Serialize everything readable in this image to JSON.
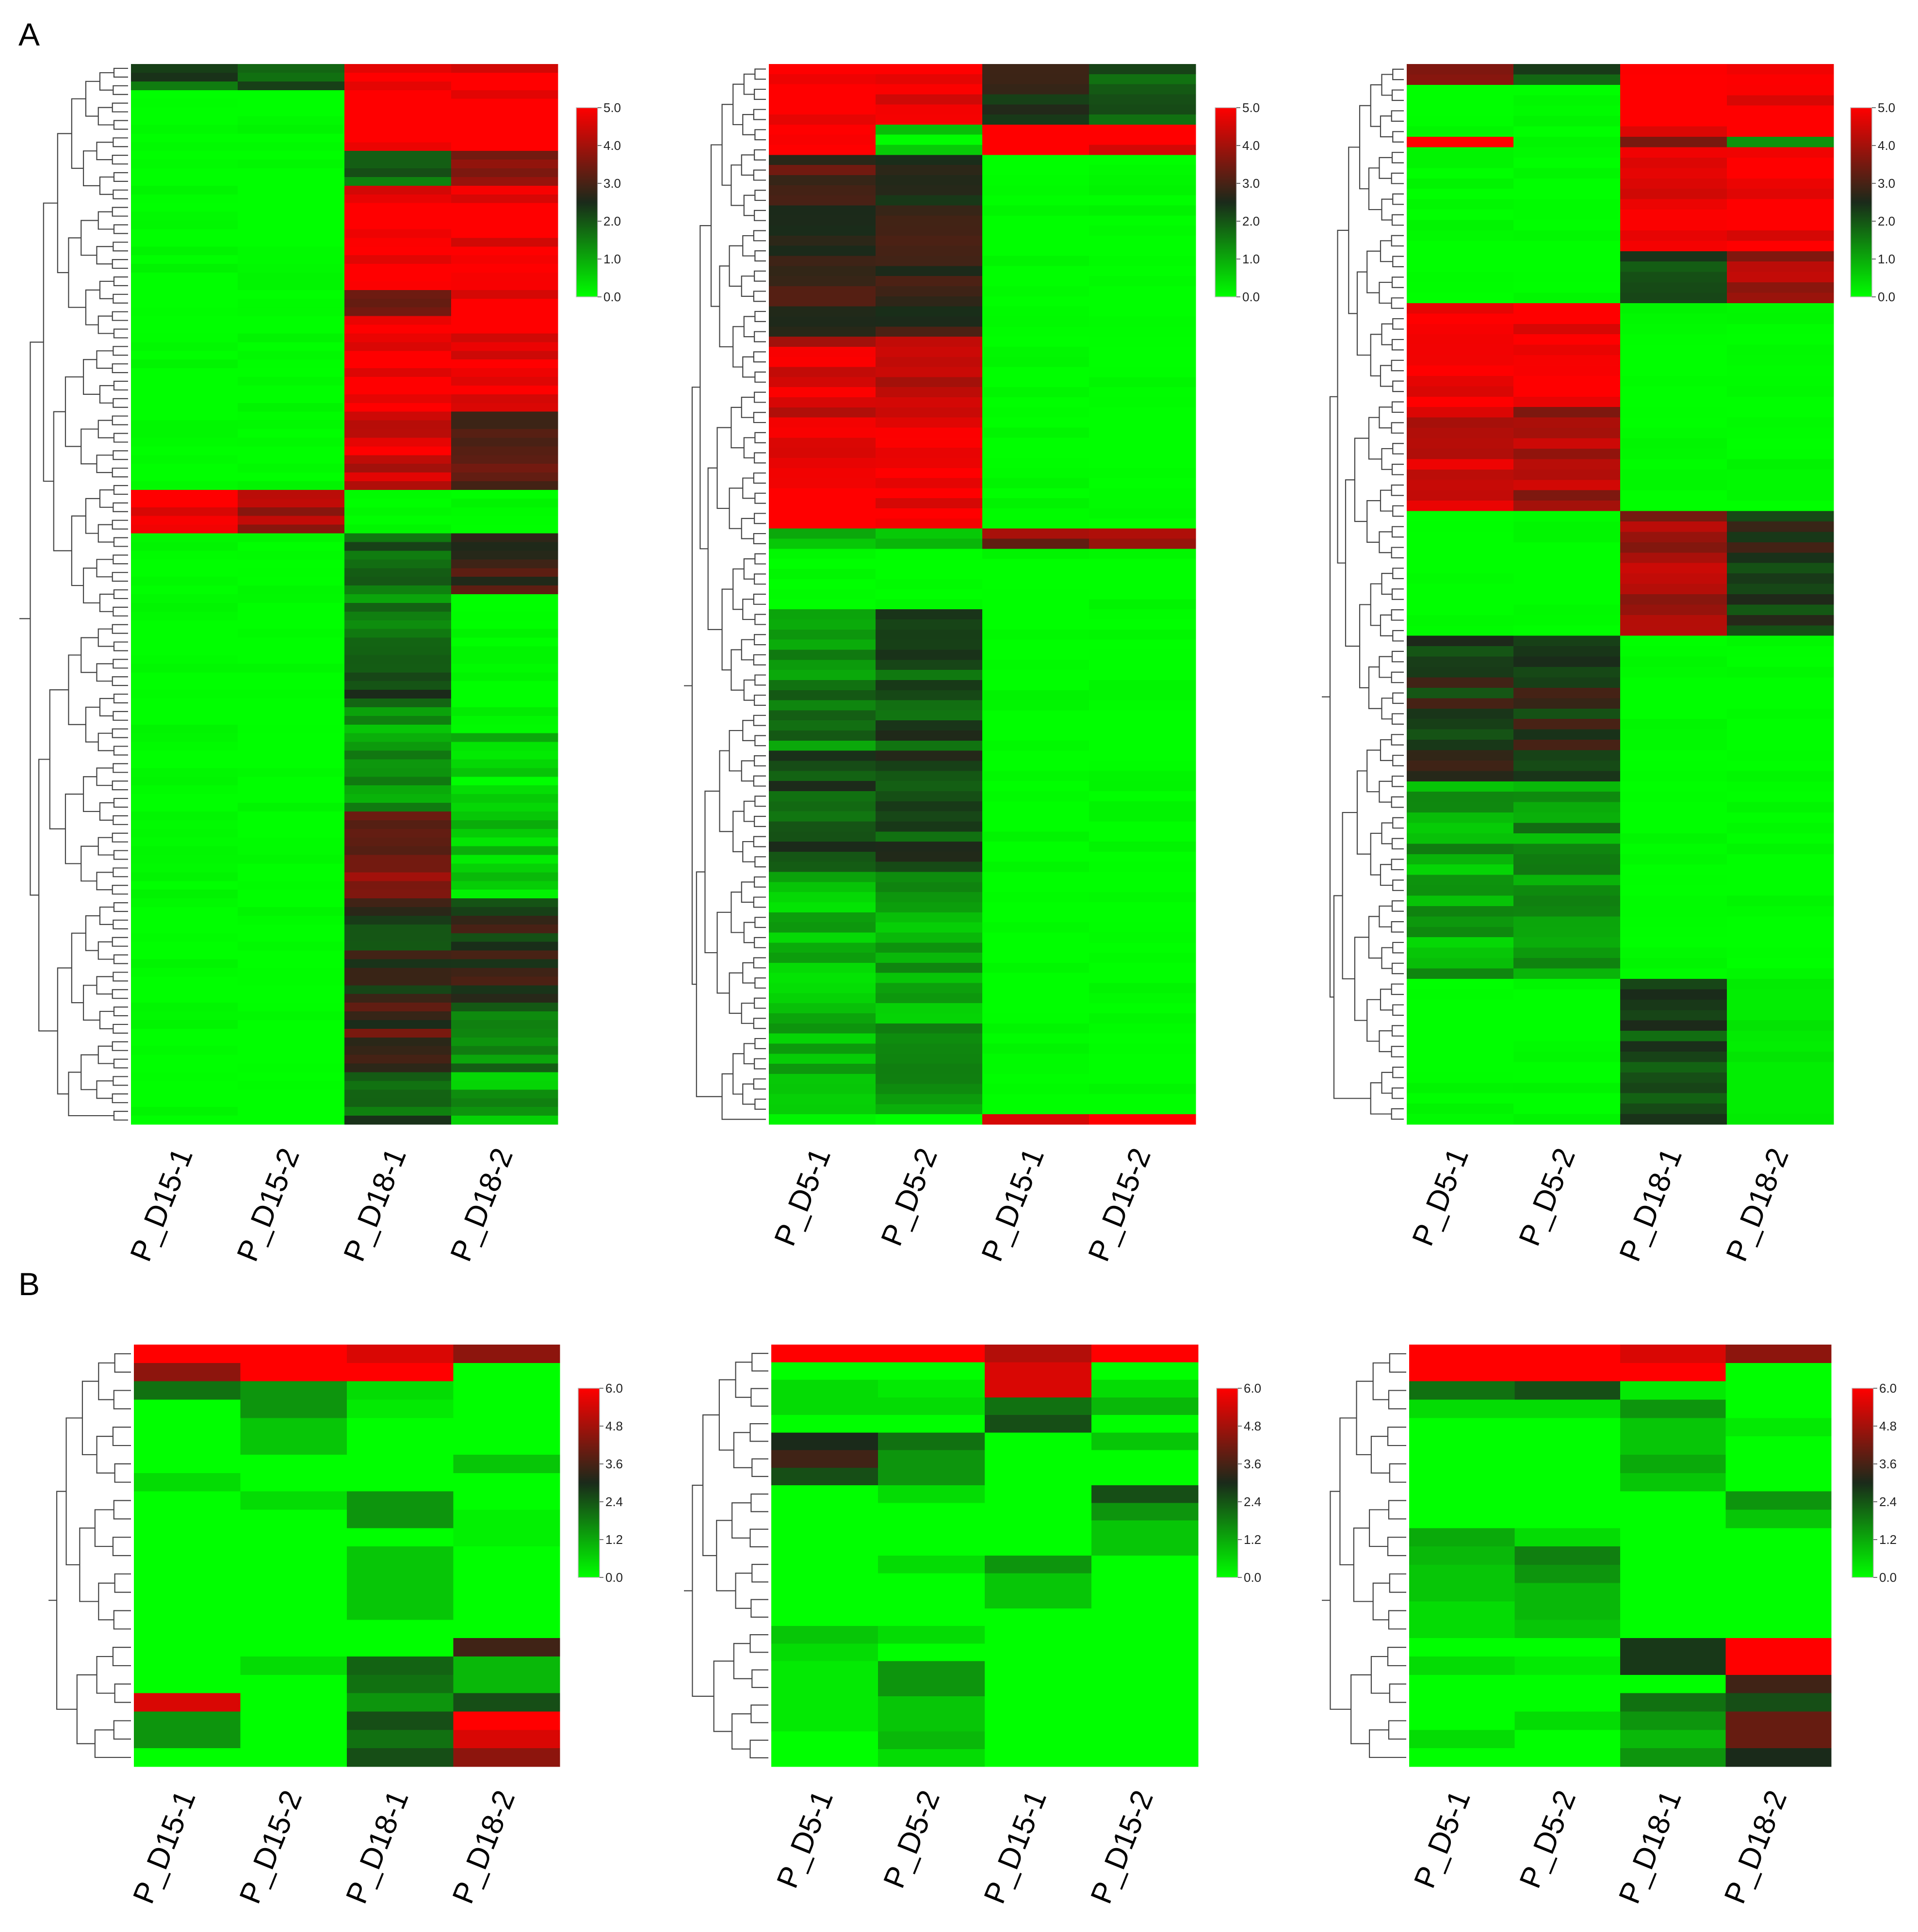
{
  "figure": {
    "panel_labels": [
      "A",
      "B"
    ]
  },
  "colors": {
    "low": "#00ff00",
    "mid": "#1a2a1a",
    "high": "#ff0000"
  },
  "chart_data": [
    {
      "type": "heatmap",
      "panel": "A",
      "columns": [
        "P_D15-1",
        "P_D15-2",
        "P_D18-1",
        "P_D18-2"
      ],
      "color_range": [
        0,
        5
      ],
      "legend_ticks": [
        "5.0",
        "4.0",
        "3.0",
        "2.0",
        "1.0",
        "0.0"
      ],
      "row_blocks": [
        {
          "rows": 3,
          "values": [
            2.0,
            1.8,
            5.0,
            5.0
          ]
        },
        {
          "rows": 7,
          "values": [
            0.0,
            0.0,
            5.0,
            5.0
          ]
        },
        {
          "rows": 4,
          "values": [
            0.0,
            0.0,
            2.0,
            3.5
          ]
        },
        {
          "rows": 12,
          "values": [
            0.0,
            0.0,
            5.0,
            5.0
          ]
        },
        {
          "rows": 3,
          "values": [
            0.0,
            0.0,
            3.0,
            5.0
          ]
        },
        {
          "rows": 11,
          "values": [
            0.0,
            0.0,
            5.0,
            5.0
          ]
        },
        {
          "rows": 9,
          "values": [
            0.0,
            0.0,
            4.5,
            3.0
          ]
        },
        {
          "rows": 5,
          "values": [
            5.0,
            4.0,
            0.0,
            0.0
          ]
        },
        {
          "rows": 7,
          "values": [
            0.0,
            0.0,
            2.0,
            3.0
          ]
        },
        {
          "rows": 6,
          "values": [
            0.0,
            0.0,
            1.5,
            0.0
          ]
        },
        {
          "rows": 7,
          "values": [
            0.0,
            0.0,
            2.0,
            0.0
          ]
        },
        {
          "rows": 12,
          "values": [
            0.0,
            0.0,
            1.2,
            0.5
          ]
        },
        {
          "rows": 10,
          "values": [
            0.0,
            0.0,
            3.5,
            0.5
          ]
        },
        {
          "rows": 12,
          "values": [
            0.0,
            0.0,
            2.5,
            2.5
          ]
        },
        {
          "rows": 8,
          "values": [
            0.0,
            0.0,
            3.0,
            1.5
          ]
        },
        {
          "rows": 6,
          "values": [
            0.0,
            0.0,
            2.0,
            1.0
          ]
        }
      ]
    },
    {
      "type": "heatmap",
      "panel": "A",
      "columns": [
        "P_D5-1",
        "P_D5-2",
        "P_D15-1",
        "P_D15-2"
      ],
      "color_range": [
        0,
        5
      ],
      "legend_ticks": [
        "5.0",
        "4.0",
        "3.0",
        "2.0",
        "1.0",
        "0.0"
      ],
      "row_blocks": [
        {
          "rows": 6,
          "values": [
            5.0,
            5.0,
            2.5,
            2.0
          ]
        },
        {
          "rows": 3,
          "values": [
            5.0,
            0.5,
            5.0,
            5.0
          ]
        },
        {
          "rows": 18,
          "values": [
            3.0,
            2.8,
            0.0,
            0.0
          ]
        },
        {
          "rows": 10,
          "values": [
            4.5,
            4.5,
            0.0,
            0.0
          ]
        },
        {
          "rows": 9,
          "values": [
            5.0,
            5.0,
            0.0,
            0.0
          ]
        },
        {
          "rows": 2,
          "values": [
            0.5,
            0.5,
            3.5,
            4.0
          ]
        },
        {
          "rows": 6,
          "values": [
            0.0,
            0.0,
            0.0,
            0.0
          ]
        },
        {
          "rows": 14,
          "values": [
            1.5,
            2.0,
            0.0,
            0.0
          ]
        },
        {
          "rows": 12,
          "values": [
            2.0,
            2.2,
            0.0,
            0.0
          ]
        },
        {
          "rows": 24,
          "values": [
            0.8,
            1.0,
            0.0,
            0.0
          ]
        },
        {
          "rows": 1,
          "values": [
            0.0,
            0.0,
            5.0,
            5.0
          ]
        }
      ]
    },
    {
      "type": "heatmap",
      "panel": "A",
      "columns": [
        "P_D5-1",
        "P_D5-2",
        "P_D18-1",
        "P_D18-2"
      ],
      "color_range": [
        0,
        5
      ],
      "legend_ticks": [
        "5.0",
        "4.0",
        "3.0",
        "2.0",
        "1.0",
        "0.0"
      ],
      "row_blocks": [
        {
          "rows": 2,
          "values": [
            3.5,
            2.0,
            5.0,
            5.0
          ]
        },
        {
          "rows": 5,
          "values": [
            0.0,
            0.0,
            5.0,
            5.0
          ]
        },
        {
          "rows": 1,
          "values": [
            5.0,
            0.0,
            3.0,
            1.0
          ]
        },
        {
          "rows": 10,
          "values": [
            0.0,
            0.0,
            5.0,
            5.0
          ]
        },
        {
          "rows": 5,
          "values": [
            0.0,
            0.0,
            2.0,
            4.0
          ]
        },
        {
          "rows": 10,
          "values": [
            5.0,
            5.0,
            0.0,
            0.0
          ]
        },
        {
          "rows": 10,
          "values": [
            4.5,
            4.0,
            0.0,
            0.0
          ]
        },
        {
          "rows": 12,
          "values": [
            0.0,
            0.0,
            4.0,
            2.5
          ]
        },
        {
          "rows": 14,
          "values": [
            2.5,
            2.5,
            0.0,
            0.0
          ]
        },
        {
          "rows": 19,
          "values": [
            1.0,
            1.2,
            0.0,
            0.0
          ]
        },
        {
          "rows": 14,
          "values": [
            0.0,
            0.0,
            2.0,
            0.2
          ]
        }
      ]
    },
    {
      "type": "heatmap",
      "panel": "B",
      "columns": [
        "P_D15-1",
        "P_D15-2",
        "P_D18-1",
        "P_D18-2"
      ],
      "color_range": [
        0,
        6
      ],
      "legend_ticks": [
        "6.0",
        "4.8",
        "3.6",
        "2.4",
        "1.2",
        "0.0"
      ],
      "rows": [
        [
          6.0,
          6.0,
          5.5,
          4.5
        ],
        [
          4.5,
          6.0,
          6.0,
          0.0
        ],
        [
          2.0,
          1.5,
          0.5,
          0.0
        ],
        [
          0.0,
          1.5,
          0.3,
          0.0
        ],
        [
          0.0,
          0.8,
          0.0,
          0.0
        ],
        [
          0.0,
          0.8,
          0.0,
          0.0
        ],
        [
          0.0,
          0.0,
          0.0,
          0.8
        ],
        [
          0.5,
          0.0,
          0.0,
          0.0
        ],
        [
          0.0,
          0.5,
          1.5,
          0.0
        ],
        [
          0.0,
          0.0,
          1.5,
          0.2
        ],
        [
          0.0,
          0.0,
          0.0,
          0.2
        ],
        [
          0.0,
          0.0,
          0.8,
          0.0
        ],
        [
          0.0,
          0.0,
          0.8,
          0.0
        ],
        [
          0.0,
          0.0,
          0.8,
          0.0
        ],
        [
          0.0,
          0.0,
          0.8,
          0.0
        ],
        [
          0.0,
          0.0,
          0.0,
          0.0
        ],
        [
          0.0,
          0.0,
          0.0,
          3.5
        ],
        [
          0.0,
          0.5,
          2.2,
          1.0
        ],
        [
          0.0,
          0.0,
          2.0,
          1.0
        ],
        [
          5.5,
          0.0,
          1.5,
          2.5
        ],
        [
          1.5,
          0.0,
          2.5,
          6.0
        ],
        [
          1.5,
          0.0,
          2.0,
          5.5
        ],
        [
          0.0,
          0.0,
          2.5,
          4.5
        ]
      ]
    },
    {
      "type": "heatmap",
      "panel": "B",
      "columns": [
        "P_D5-1",
        "P_D5-2",
        "P_D15-1",
        "P_D15-2"
      ],
      "color_range": [
        0,
        6
      ],
      "legend_ticks": [
        "6.0",
        "4.8",
        "3.6",
        "2.4",
        "1.2",
        "0.0"
      ],
      "rows": [
        [
          6.0,
          6.0,
          5.0,
          6.0
        ],
        [
          0.0,
          0.0,
          5.5,
          0.0
        ],
        [
          0.5,
          0.3,
          5.5,
          0.5
        ],
        [
          0.5,
          0.5,
          2.0,
          1.0
        ],
        [
          0.0,
          0.0,
          2.5,
          0.0
        ],
        [
          3.0,
          2.0,
          0.0,
          0.8
        ],
        [
          3.5,
          1.5,
          0.0,
          0.0
        ],
        [
          2.5,
          1.5,
          0.0,
          0.0
        ],
        [
          0.0,
          0.5,
          0.0,
          2.5
        ],
        [
          0.0,
          0.0,
          0.0,
          1.5
        ],
        [
          0.0,
          0.0,
          0.0,
          0.8
        ],
        [
          0.0,
          0.0,
          0.0,
          0.8
        ],
        [
          0.0,
          0.5,
          1.5,
          0.0
        ],
        [
          0.0,
          0.0,
          0.8,
          0.0
        ],
        [
          0.0,
          0.0,
          0.8,
          0.0
        ],
        [
          0.0,
          0.0,
          0.0,
          0.0
        ],
        [
          0.8,
          0.5,
          0.0,
          0.0
        ],
        [
          0.5,
          0.0,
          0.0,
          0.0
        ],
        [
          0.3,
          1.5,
          0.0,
          0.0
        ],
        [
          0.3,
          1.5,
          0.0,
          0.0
        ],
        [
          0.3,
          0.8,
          0.0,
          0.0
        ],
        [
          0.3,
          0.8,
          0.0,
          0.0
        ],
        [
          0.0,
          1.0,
          0.0,
          0.0
        ],
        [
          0.0,
          0.5,
          0.0,
          0.0
        ]
      ]
    },
    {
      "type": "heatmap",
      "panel": "B",
      "columns": [
        "P_D5-1",
        "P_D5-2",
        "P_D18-1",
        "P_D18-2"
      ],
      "color_range": [
        0,
        6
      ],
      "legend_ticks": [
        "6.0",
        "4.8",
        "3.6",
        "2.4",
        "1.2",
        "0.0"
      ],
      "rows": [
        [
          6.0,
          6.0,
          5.5,
          4.5
        ],
        [
          6.0,
          6.0,
          6.0,
          0.0
        ],
        [
          2.0,
          2.5,
          0.3,
          0.0
        ],
        [
          0.5,
          0.5,
          1.5,
          0.0
        ],
        [
          0.0,
          0.0,
          0.8,
          0.3
        ],
        [
          0.0,
          0.0,
          0.8,
          0.0
        ],
        [
          0.0,
          0.0,
          1.2,
          0.0
        ],
        [
          0.0,
          0.0,
          0.8,
          0.0
        ],
        [
          0.0,
          0.0,
          0.0,
          1.5
        ],
        [
          0.0,
          0.0,
          0.0,
          0.8
        ],
        [
          1.2,
          0.5,
          0.0,
          0.0
        ],
        [
          1.0,
          1.8,
          0.0,
          0.0
        ],
        [
          0.8,
          1.5,
          0.0,
          0.0
        ],
        [
          0.8,
          1.0,
          0.0,
          0.0
        ],
        [
          0.5,
          1.0,
          0.0,
          0.0
        ],
        [
          0.5,
          0.8,
          0.0,
          0.0
        ],
        [
          0.0,
          0.0,
          2.8,
          6.0
        ],
        [
          0.5,
          0.3,
          2.8,
          6.0
        ],
        [
          0.0,
          0.0,
          0.0,
          3.5
        ],
        [
          0.0,
          0.0,
          2.0,
          2.5
        ],
        [
          0.0,
          0.5,
          1.5,
          4.0
        ],
        [
          0.5,
          0.0,
          1.0,
          4.0
        ],
        [
          0.0,
          0.0,
          1.5,
          3.0
        ]
      ]
    }
  ]
}
